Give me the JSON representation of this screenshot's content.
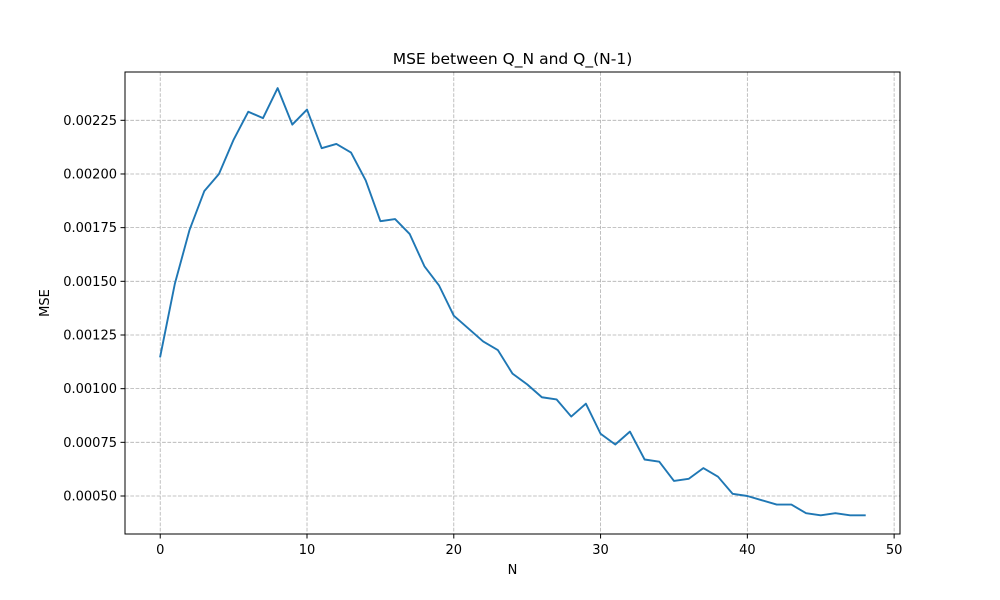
{
  "chart_data": {
    "type": "line",
    "title": "MSE between Q_N and Q_(N-1)",
    "xlabel": "N",
    "ylabel": "MSE",
    "xlim": [
      -2.4,
      50.4
    ],
    "ylim": [
      0.000323,
      0.002475
    ],
    "xticks": [
      0,
      10,
      20,
      30,
      40,
      50
    ],
    "xtick_labels": [
      "0",
      "10",
      "20",
      "30",
      "40",
      "50"
    ],
    "yticks": [
      0.0005,
      0.00075,
      0.001,
      0.00125,
      0.0015,
      0.00175,
      0.002,
      0.00225
    ],
    "ytick_labels": [
      "0.00050",
      "0.00075",
      "0.00100",
      "0.00125",
      "0.00150",
      "0.00175",
      "0.00200",
      "0.00225"
    ],
    "grid": true,
    "grid_style": "dashed",
    "line_color": "#1f77b4",
    "grid_color": "#b0b0b0",
    "series": [
      {
        "x": [
          0,
          1,
          2,
          3,
          4,
          5,
          6,
          7,
          8,
          9,
          10,
          11,
          12,
          13,
          14,
          15,
          16,
          17,
          18,
          19,
          20,
          21,
          22,
          23,
          24,
          25,
          26,
          27,
          28,
          29,
          30,
          31,
          32,
          33,
          34,
          35,
          36,
          37,
          38,
          39,
          40,
          41,
          42,
          43,
          44,
          45,
          46,
          47,
          48
        ],
        "y": [
          0.00115,
          0.00149,
          0.00174,
          0.00192,
          0.002,
          0.00216,
          0.00229,
          0.00226,
          0.0024,
          0.00223,
          0.0023,
          0.00212,
          0.00214,
          0.0021,
          0.00197,
          0.00178,
          0.00179,
          0.00172,
          0.00157,
          0.00148,
          0.00134,
          0.00128,
          0.00122,
          0.00118,
          0.00107,
          0.00102,
          0.00096,
          0.00095,
          0.00087,
          0.00093,
          0.00079,
          0.00074,
          0.0008,
          0.00067,
          0.00066,
          0.00057,
          0.00058,
          0.00063,
          0.00059,
          0.00051,
          0.0005,
          0.00048,
          0.00046,
          0.00046,
          0.00042,
          0.00041,
          0.00042,
          0.00041,
          0.00041
        ]
      }
    ]
  }
}
